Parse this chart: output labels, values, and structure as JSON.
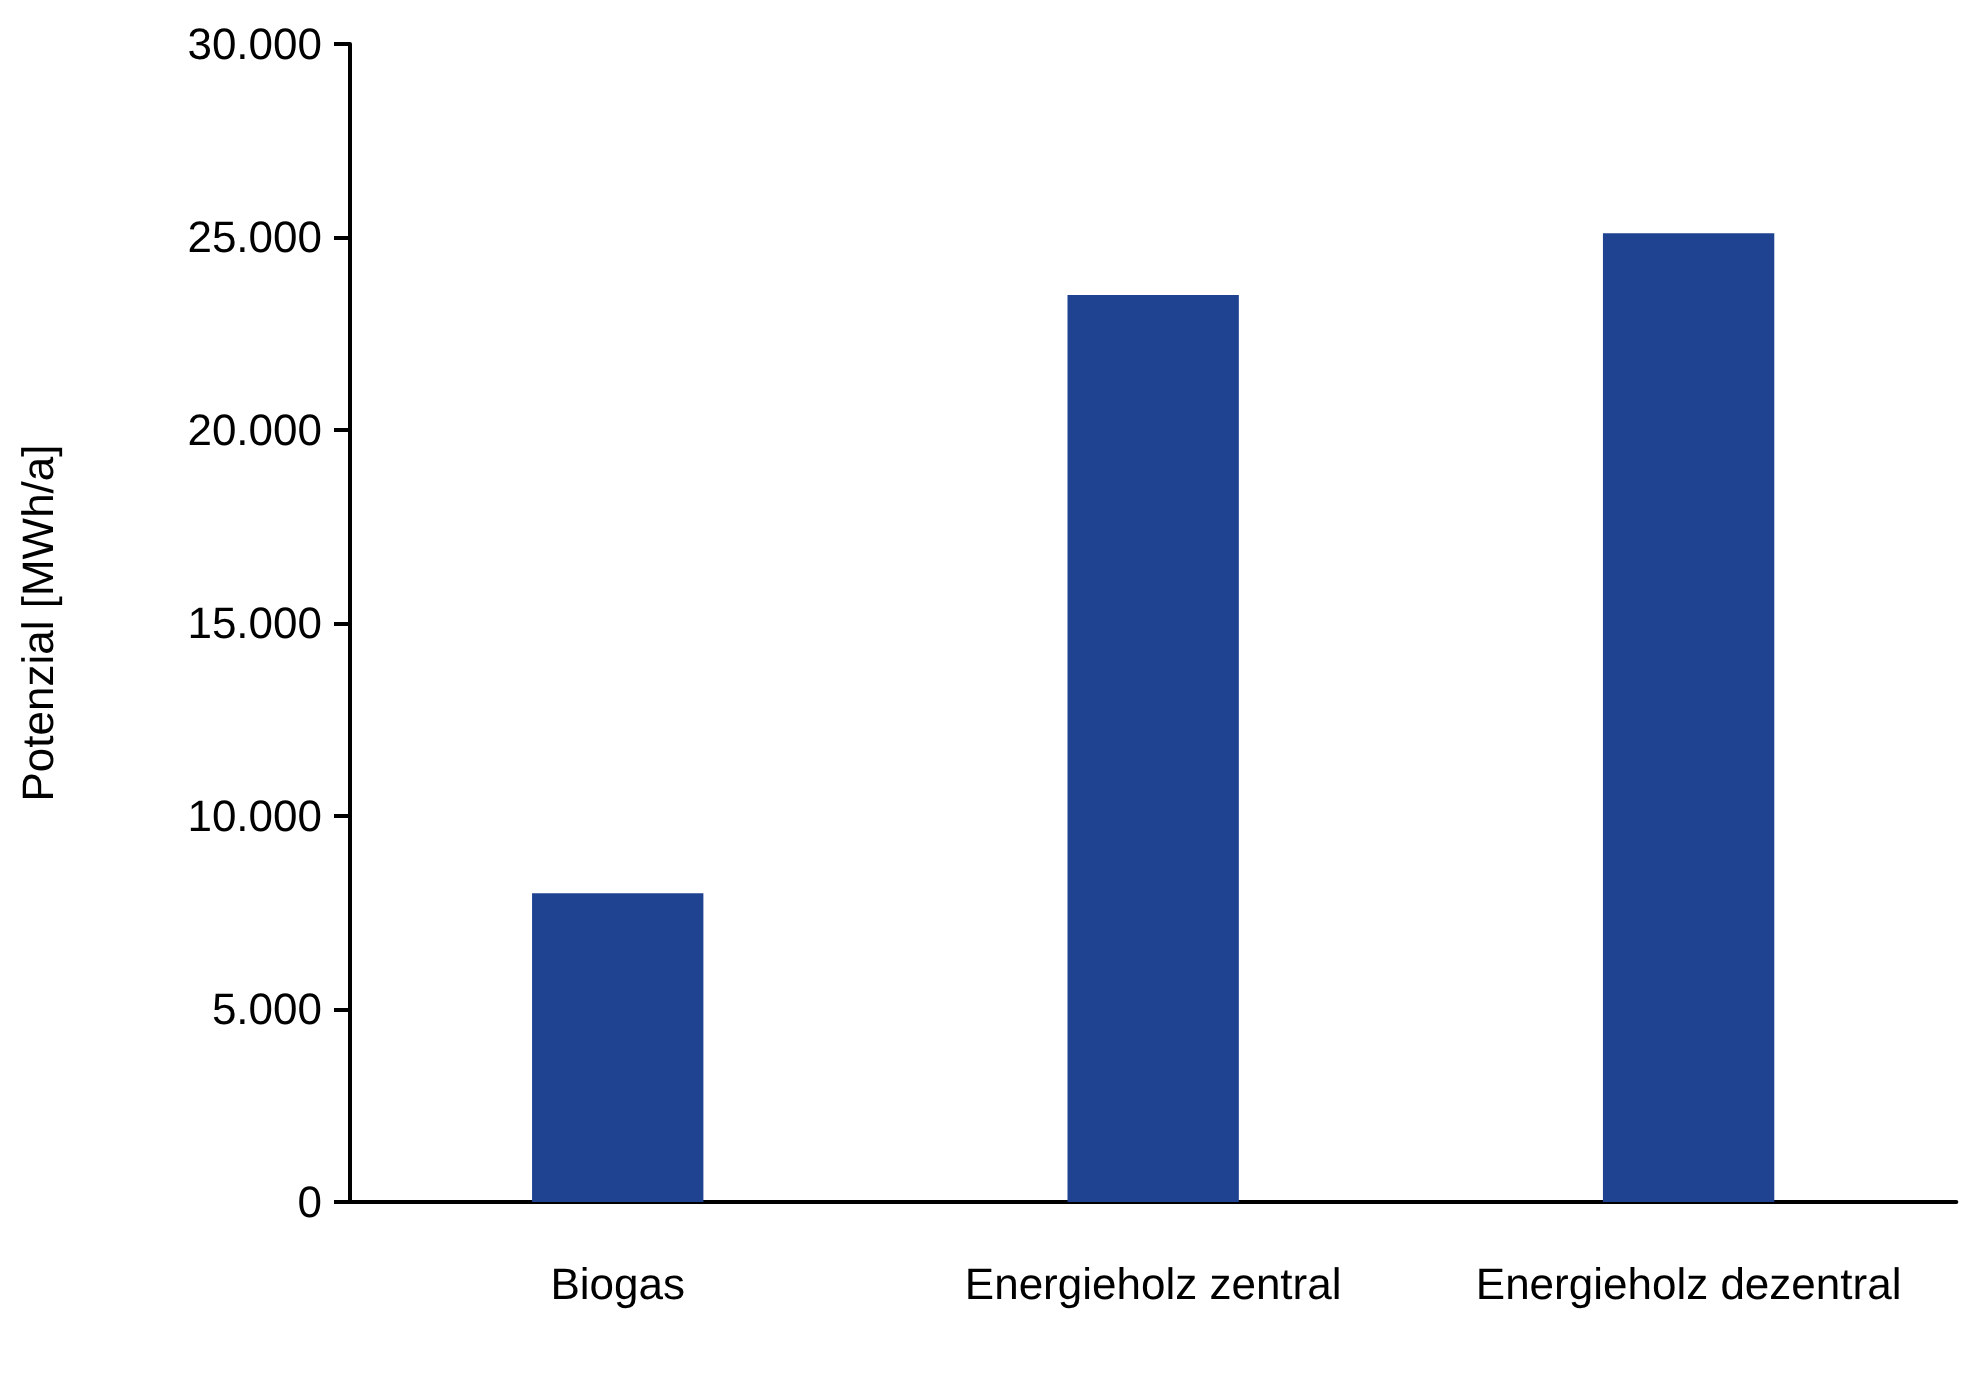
{
  "chart_data": {
    "type": "bar",
    "ylabel": "Potenzial [MWh/a]",
    "categories": [
      "Biogas",
      "Energieholz zentral",
      "Energieholz dezentral"
    ],
    "values": [
      8000,
      23500,
      25100
    ],
    "color": "#1f4291",
    "ylim": [
      0,
      30000
    ],
    "yticks": [
      {
        "value": 0,
        "label": "0"
      },
      {
        "value": 5000,
        "label": "5.000"
      },
      {
        "value": 10000,
        "label": "10.000"
      },
      {
        "value": 15000,
        "label": "15.000"
      },
      {
        "value": 20000,
        "label": "20.000"
      },
      {
        "value": 25000,
        "label": "25.000"
      },
      {
        "value": 30000,
        "label": "30.000"
      }
    ],
    "grid": false
  }
}
